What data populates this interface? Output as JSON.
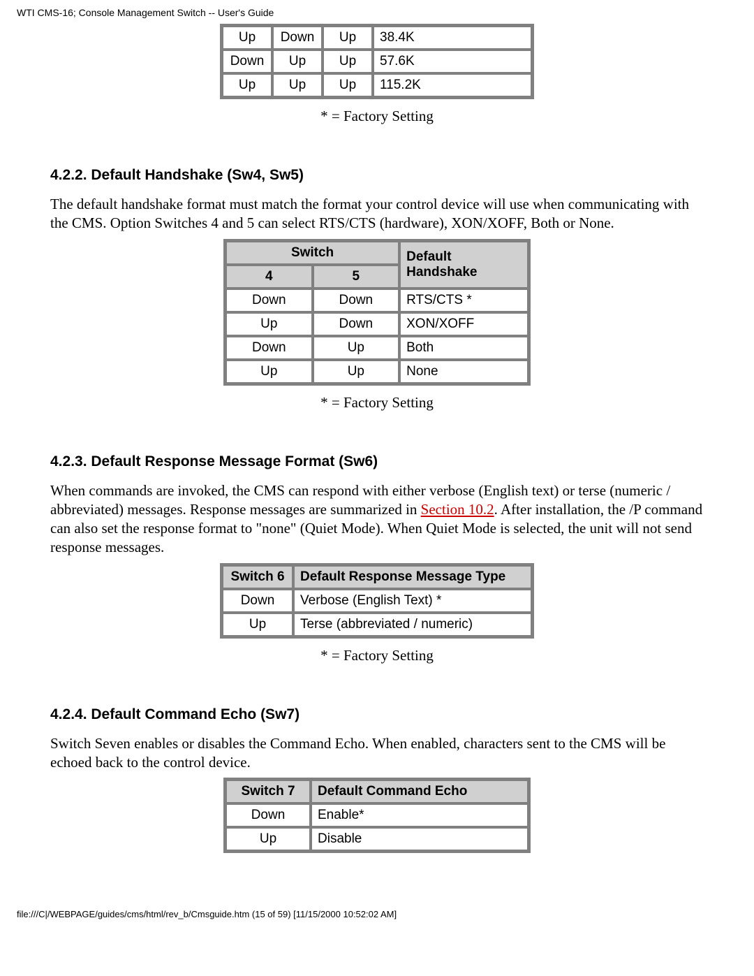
{
  "header": "WTI CMS-16; Console Management Switch -- User's Guide",
  "table1": {
    "rows": [
      [
        "Up",
        "Down",
        "Up",
        "38.4K"
      ],
      [
        "Down",
        "Up",
        "Up",
        "57.6K"
      ],
      [
        "Up",
        "Up",
        "Up",
        "115.2K"
      ]
    ]
  },
  "factoryNote": "* = Factory Setting",
  "section422": {
    "title": "4.2.2.   Default Handshake (Sw4, Sw5)",
    "paragraph": "The default handshake format must match the format your control device will use when communicating with the CMS.  Option Switches 4 and 5 can select RTS/CTS (hardware), XON/XOFF, Both or None.",
    "tableHeaderSwitch": "Switch",
    "tableHeader4": "4",
    "tableHeader5": "5",
    "tableHeaderHandshake": "Default Handshake",
    "rows": [
      [
        "Down",
        "Down",
        "RTS/CTS *"
      ],
      [
        "Up",
        "Down",
        "XON/XOFF"
      ],
      [
        "Down",
        "Up",
        "Both"
      ],
      [
        "Up",
        "Up",
        "None"
      ]
    ]
  },
  "section423": {
    "title": "4.2.3.   Default Response Message Format (Sw6)",
    "paragraphPart1": "When commands are invoked, the CMS can respond with either verbose (English text) or terse (numeric / abbreviated) messages. Response messages are summarized in ",
    "linkText": "Section 10.2",
    "paragraphPart2": ". After installation, the /P command can also set the response format to \"none\" (Quiet Mode). When Quiet Mode is selected, the unit will not send response messages.",
    "tableHeaderSwitch": "Switch 6",
    "tableHeaderType": "Default Response Message Type",
    "rows": [
      [
        "Down",
        "Verbose (English Text) *"
      ],
      [
        "Up",
        "Terse (abbreviated / numeric)"
      ]
    ]
  },
  "section424": {
    "title": "4.2.4.   Default Command Echo (Sw7)",
    "paragraph": "Switch Seven enables or disables the Command Echo.  When enabled, characters sent to the CMS will be echoed back to the control device.",
    "tableHeaderSwitch": "Switch 7",
    "tableHeaderEcho": "Default Command Echo",
    "rows": [
      [
        "Down",
        "Enable*"
      ],
      [
        "Up",
        "Disable"
      ]
    ]
  },
  "footer": "file:///C|/WEBPAGE/guides/cms/html/rev_b/Cmsguide.htm (15 of 59) [11/15/2000 10:52:02 AM]"
}
